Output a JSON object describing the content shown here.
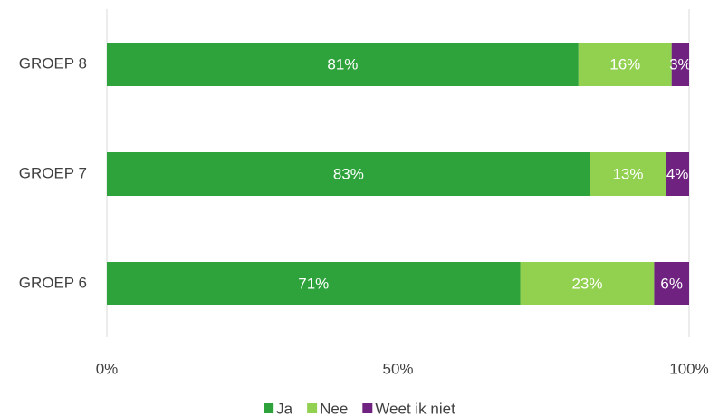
{
  "chart_data": {
    "type": "stacked-bar-horizontal",
    "categories": [
      "GROEP 8",
      "GROEP 7",
      "GROEP 6"
    ],
    "series": [
      {
        "name": "Ja",
        "color": "#2ea33c",
        "values": [
          81,
          83,
          71
        ],
        "value_labels": [
          "81%",
          "83%",
          "71%"
        ]
      },
      {
        "name": "Nee",
        "color": "#92d050",
        "values": [
          16,
          13,
          23
        ],
        "value_labels": [
          "16%",
          "13%",
          "23%"
        ]
      },
      {
        "name": "Weet ik niet",
        "color": "#6f2280",
        "values": [
          3,
          4,
          6
        ],
        "value_labels": [
          "3%",
          "4%",
          "6%"
        ]
      }
    ],
    "xlim": [
      0,
      100
    ],
    "xticks": [
      {
        "value": 0,
        "label": "0%"
      },
      {
        "value": 50,
        "label": "50%"
      },
      {
        "value": 100,
        "label": "100%"
      }
    ],
    "grid": true,
    "legend": "bottom"
  }
}
